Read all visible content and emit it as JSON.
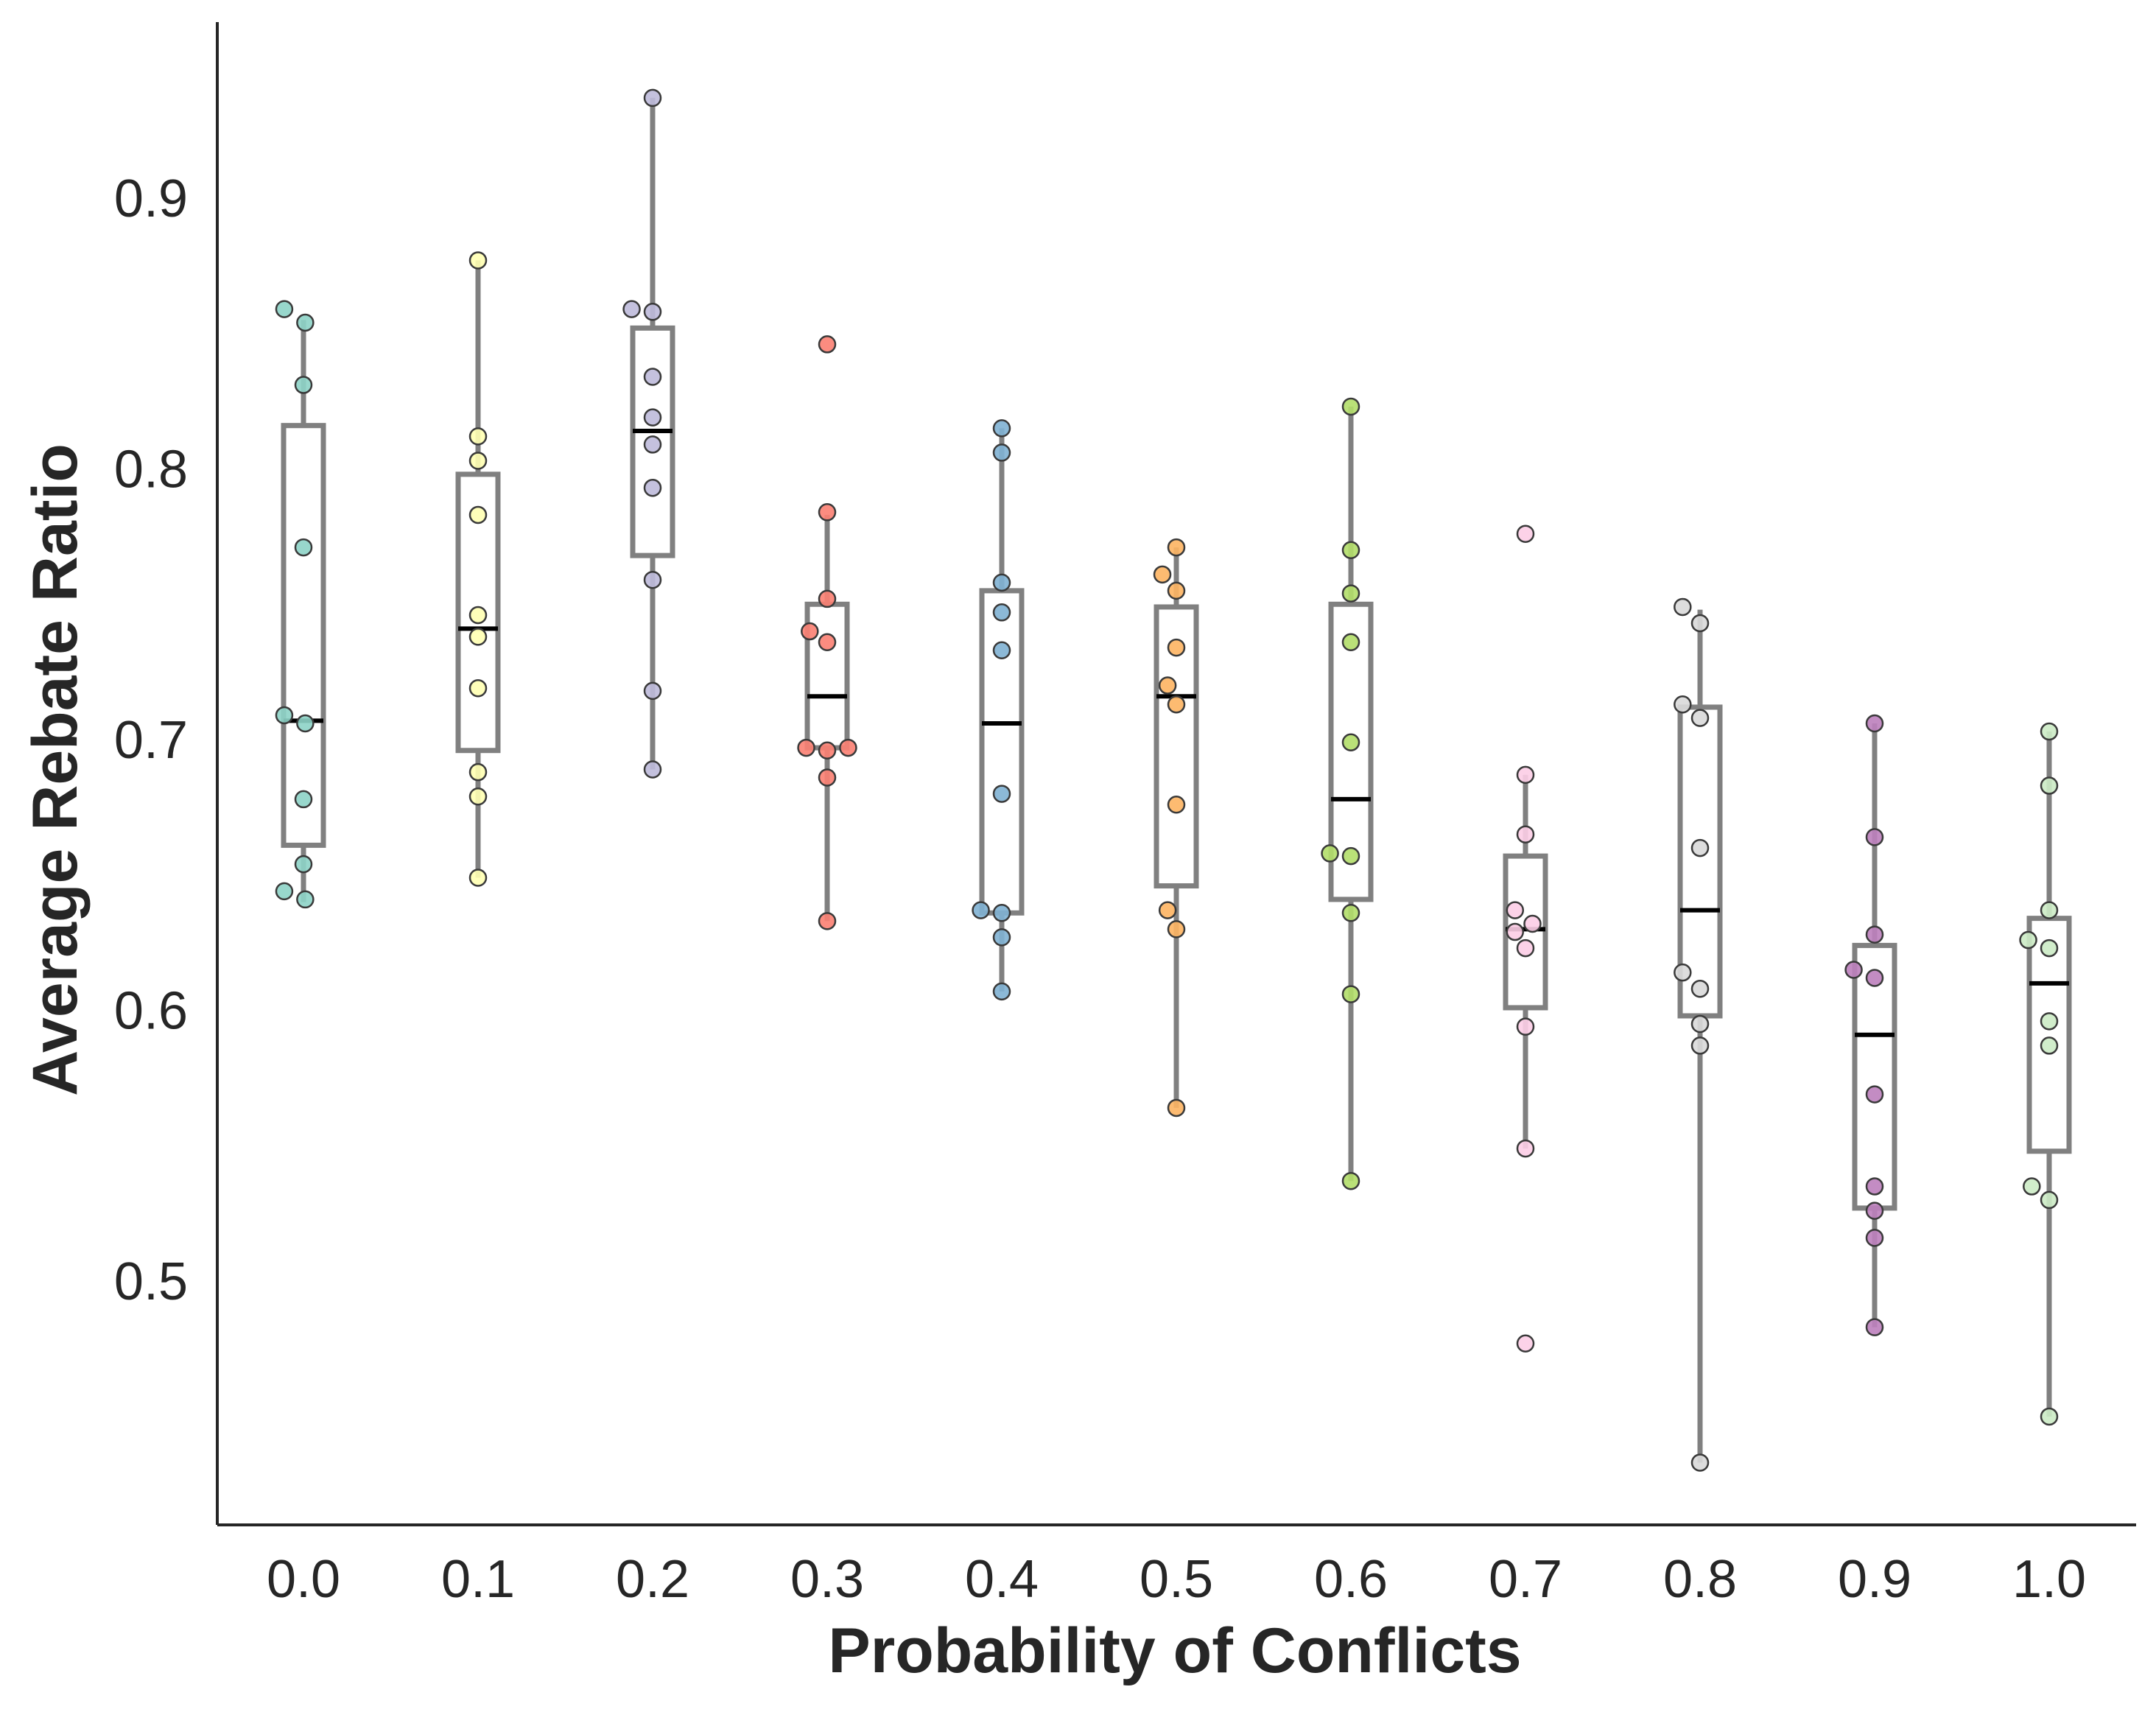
{
  "chart_data": {
    "type": "box",
    "title": "",
    "xlabel": "Probability of Conflicts",
    "ylabel": "Average Rebate Ratio",
    "categories": [
      "0.0",
      "0.1",
      "0.2",
      "0.3",
      "0.4",
      "0.5",
      "0.6",
      "0.7",
      "0.8",
      "0.9",
      "1.0"
    ],
    "ylim": [
      0.41,
      0.965
    ],
    "yticks": [
      "0.5",
      "0.6",
      "0.7",
      "0.8",
      "0.9"
    ],
    "grid": false,
    "legend": "none",
    "boxes": [
      {
        "category": "0.0",
        "whisker_low": 0.64,
        "q1": 0.661,
        "median": 0.707,
        "q3": 0.816,
        "whisker_high": 0.855
      },
      {
        "category": "0.1",
        "whisker_low": 0.649,
        "q1": 0.696,
        "median": 0.741,
        "q3": 0.798,
        "whisker_high": 0.877
      },
      {
        "category": "0.2",
        "whisker_low": 0.689,
        "q1": 0.768,
        "median": 0.814,
        "q3": 0.852,
        "whisker_high": 0.937
      },
      {
        "category": "0.3",
        "whisker_low": 0.633,
        "q1": 0.697,
        "median": 0.716,
        "q3": 0.75,
        "whisker_high": 0.783
      },
      {
        "category": "0.4",
        "whisker_low": 0.607,
        "q1": 0.636,
        "median": 0.706,
        "q3": 0.755,
        "whisker_high": 0.815
      },
      {
        "category": "0.5",
        "whisker_low": 0.564,
        "q1": 0.646,
        "median": 0.716,
        "q3": 0.749,
        "whisker_high": 0.771
      },
      {
        "category": "0.6",
        "whisker_low": 0.537,
        "q1": 0.641,
        "median": 0.678,
        "q3": 0.75,
        "whisker_high": 0.823
      },
      {
        "category": "0.7",
        "whisker_low": 0.549,
        "q1": 0.601,
        "median": 0.63,
        "q3": 0.657,
        "whisker_high": 0.687
      },
      {
        "category": "0.8",
        "whisker_low": 0.433,
        "q1": 0.598,
        "median": 0.637,
        "q3": 0.712,
        "whisker_high": 0.748
      },
      {
        "category": "0.9",
        "whisker_low": 0.483,
        "q1": 0.527,
        "median": 0.591,
        "q3": 0.624,
        "whisker_high": 0.706
      },
      {
        "category": "1.0",
        "whisker_low": 0.45,
        "q1": 0.548,
        "median": 0.61,
        "q3": 0.634,
        "whisker_high": 0.703
      }
    ],
    "series": [
      {
        "category": "0.0",
        "color": "#8dd3c7",
        "points": [
          [
            -0.11,
            0.859
          ],
          [
            0.01,
            0.854
          ],
          [
            0.0,
            0.831
          ],
          [
            0.0,
            0.771
          ],
          [
            -0.11,
            0.709
          ],
          [
            0.01,
            0.706
          ],
          [
            0.0,
            0.678
          ],
          [
            0.0,
            0.654
          ],
          [
            -0.11,
            0.644
          ],
          [
            0.01,
            0.641
          ]
        ]
      },
      {
        "category": "0.1",
        "color": "#ffffb3",
        "points": [
          [
            0.0,
            0.877
          ],
          [
            0.0,
            0.812
          ],
          [
            0.0,
            0.803
          ],
          [
            0.0,
            0.783
          ],
          [
            0.0,
            0.746
          ],
          [
            0.0,
            0.738
          ],
          [
            0.0,
            0.719
          ],
          [
            0.0,
            0.688
          ],
          [
            0.0,
            0.679
          ],
          [
            0.0,
            0.649
          ]
        ]
      },
      {
        "category": "0.2",
        "color": "#bebada",
        "points": [
          [
            0.0,
            0.937
          ],
          [
            -0.12,
            0.859
          ],
          [
            0.0,
            0.858
          ],
          [
            0.0,
            0.834
          ],
          [
            0.0,
            0.819
          ],
          [
            0.0,
            0.809
          ],
          [
            0.0,
            0.793
          ],
          [
            0.0,
            0.759
          ],
          [
            0.0,
            0.718
          ],
          [
            0.0,
            0.689
          ]
        ]
      },
      {
        "category": "0.3",
        "color": "#fb8072",
        "points": [
          [
            0.0,
            0.846
          ],
          [
            0.0,
            0.784
          ],
          [
            0.0,
            0.752
          ],
          [
            -0.1,
            0.74
          ],
          [
            0.0,
            0.736
          ],
          [
            -0.12,
            0.697
          ],
          [
            0.0,
            0.696
          ],
          [
            0.12,
            0.697
          ],
          [
            0.0,
            0.686
          ],
          [
            0.0,
            0.633
          ]
        ]
      },
      {
        "category": "0.4",
        "color": "#80b1d3",
        "points": [
          [
            0.0,
            0.815
          ],
          [
            0.0,
            0.806
          ],
          [
            0.0,
            0.758
          ],
          [
            0.0,
            0.747
          ],
          [
            0.0,
            0.733
          ],
          [
            0.0,
            0.68
          ],
          [
            -0.12,
            0.637
          ],
          [
            0.0,
            0.636
          ],
          [
            0.0,
            0.627
          ],
          [
            0.0,
            0.607
          ]
        ]
      },
      {
        "category": "0.5",
        "color": "#fdb462",
        "points": [
          [
            0.0,
            0.771
          ],
          [
            -0.08,
            0.761
          ],
          [
            0.0,
            0.755
          ],
          [
            0.0,
            0.734
          ],
          [
            -0.05,
            0.72
          ],
          [
            0.0,
            0.713
          ],
          [
            0.0,
            0.676
          ],
          [
            -0.05,
            0.637
          ],
          [
            0.0,
            0.63
          ],
          [
            0.0,
            0.564
          ]
        ]
      },
      {
        "category": "0.6",
        "color": "#b3de69",
        "points": [
          [
            0.0,
            0.823
          ],
          [
            0.0,
            0.77
          ],
          [
            0.0,
            0.754
          ],
          [
            0.0,
            0.736
          ],
          [
            0.0,
            0.699
          ],
          [
            -0.12,
            0.658
          ],
          [
            0.0,
            0.657
          ],
          [
            0.0,
            0.636
          ],
          [
            0.0,
            0.606
          ],
          [
            0.0,
            0.537
          ]
        ]
      },
      {
        "category": "0.7",
        "color": "#fccde5",
        "points": [
          [
            0.0,
            0.776
          ],
          [
            0.0,
            0.687
          ],
          [
            0.0,
            0.665
          ],
          [
            -0.06,
            0.637
          ],
          [
            0.04,
            0.632
          ],
          [
            -0.06,
            0.629
          ],
          [
            0.0,
            0.623
          ],
          [
            0.0,
            0.594
          ],
          [
            0.0,
            0.549
          ],
          [
            0.0,
            0.477
          ]
        ]
      },
      {
        "category": "0.8",
        "color": "#d9d9d9",
        "points": [
          [
            -0.1,
            0.749
          ],
          [
            0.0,
            0.743
          ],
          [
            -0.1,
            0.713
          ],
          [
            0.0,
            0.708
          ],
          [
            0.0,
            0.66
          ],
          [
            -0.1,
            0.614
          ],
          [
            0.0,
            0.608
          ],
          [
            0.0,
            0.595
          ],
          [
            0.0,
            0.587
          ],
          [
            0.0,
            0.433
          ]
        ]
      },
      {
        "category": "0.9",
        "color": "#bc80bd",
        "points": [
          [
            0.0,
            0.706
          ],
          [
            0.0,
            0.664
          ],
          [
            0.0,
            0.628
          ],
          [
            -0.12,
            0.615
          ],
          [
            0.0,
            0.612
          ],
          [
            0.0,
            0.569
          ],
          [
            0.0,
            0.535
          ],
          [
            0.0,
            0.526
          ],
          [
            0.0,
            0.516
          ],
          [
            0.0,
            0.483
          ]
        ]
      },
      {
        "category": "1.0",
        "color": "#ccebc5",
        "points": [
          [
            0.0,
            0.703
          ],
          [
            0.0,
            0.683
          ],
          [
            0.0,
            0.637
          ],
          [
            -0.12,
            0.626
          ],
          [
            0.0,
            0.623
          ],
          [
            0.0,
            0.596
          ],
          [
            0.0,
            0.587
          ],
          [
            -0.1,
            0.535
          ],
          [
            0.0,
            0.53
          ],
          [
            0.0,
            0.45
          ]
        ]
      }
    ]
  }
}
